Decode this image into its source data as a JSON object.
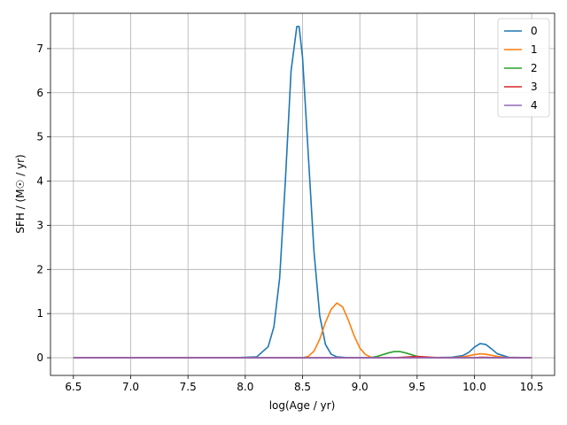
{
  "chart_data": {
    "type": "line",
    "title": "",
    "xlabel": "log(Age / yr)",
    "ylabel": "SFH / (M☉ / yr)",
    "xlim": [
      6.3,
      10.7
    ],
    "ylim": [
      -0.4,
      7.8
    ],
    "xticks": [
      6.5,
      7.0,
      7.5,
      8.0,
      8.5,
      9.0,
      9.5,
      10.0,
      10.5
    ],
    "xtick_labels": [
      "6.5",
      "7.0",
      "7.5",
      "8.0",
      "8.5",
      "9.0",
      "9.5",
      "10.0",
      "10.5"
    ],
    "yticks": [
      0,
      1,
      2,
      3,
      4,
      5,
      6,
      7
    ],
    "ytick_labels": [
      "0",
      "1",
      "2",
      "3",
      "4",
      "5",
      "6",
      "7"
    ],
    "grid": true,
    "legend_position": "top-right",
    "series": [
      {
        "name": "0",
        "color": "#1f77b4",
        "x": [
          6.5,
          7.0,
          7.5,
          7.9,
          8.1,
          8.2,
          8.25,
          8.3,
          8.35,
          8.4,
          8.45,
          8.47,
          8.5,
          8.55,
          8.6,
          8.65,
          8.7,
          8.75,
          8.8,
          8.9,
          9.0,
          9.2,
          9.5,
          9.8,
          9.9,
          9.95,
          10.0,
          10.05,
          10.1,
          10.15,
          10.2,
          10.3,
          10.5
        ],
        "y": [
          0,
          0,
          0,
          0,
          0.02,
          0.25,
          0.7,
          1.8,
          4.0,
          6.5,
          7.5,
          7.5,
          6.8,
          4.6,
          2.4,
          0.95,
          0.3,
          0.08,
          0.02,
          0,
          0,
          0,
          0,
          0.01,
          0.05,
          0.12,
          0.24,
          0.32,
          0.3,
          0.2,
          0.09,
          0.01,
          0
        ]
      },
      {
        "name": "1",
        "color": "#ff7f0e",
        "x": [
          6.5,
          8.0,
          8.5,
          8.55,
          8.6,
          8.65,
          8.7,
          8.75,
          8.8,
          8.85,
          8.9,
          8.95,
          9.0,
          9.05,
          9.1,
          9.2,
          9.8,
          9.9,
          10.0,
          10.05,
          10.1,
          10.2,
          10.3,
          10.5
        ],
        "y": [
          0,
          0,
          0,
          0.03,
          0.15,
          0.42,
          0.8,
          1.1,
          1.24,
          1.15,
          0.85,
          0.5,
          0.22,
          0.07,
          0.01,
          0,
          0,
          0.02,
          0.07,
          0.09,
          0.08,
          0.03,
          0,
          0
        ]
      },
      {
        "name": "2",
        "color": "#2ca02c",
        "x": [
          6.5,
          9.0,
          9.1,
          9.15,
          9.2,
          9.25,
          9.3,
          9.35,
          9.4,
          9.45,
          9.5,
          9.55,
          9.6,
          10.5
        ],
        "y": [
          0,
          0,
          0.005,
          0.03,
          0.07,
          0.11,
          0.14,
          0.14,
          0.11,
          0.07,
          0.03,
          0.01,
          0,
          0
        ]
      },
      {
        "name": "3",
        "color": "#d62728",
        "x": [
          6.5,
          9.3,
          9.4,
          9.5,
          9.6,
          9.7,
          10.0,
          10.05,
          10.1,
          10.2,
          10.5
        ],
        "y": [
          0,
          0,
          0.015,
          0.03,
          0.015,
          0,
          0,
          0.01,
          0.01,
          0,
          0
        ]
      },
      {
        "name": "4",
        "color": "#9467bd",
        "x": [
          6.5,
          10.5
        ],
        "y": [
          0,
          0
        ]
      }
    ]
  }
}
